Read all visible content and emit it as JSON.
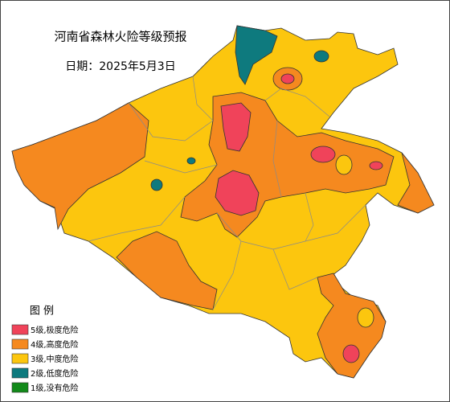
{
  "title": "河南省森林火险等级预报",
  "date": "日期：2025年5月3日",
  "legend": {
    "title": "图  例",
    "items": [
      {
        "label": "5级,极度危险",
        "color": "#f0435a"
      },
      {
        "label": "4级,高度危险",
        "color": "#f5891f"
      },
      {
        "label": "3级,中度危险",
        "color": "#fcc60e"
      },
      {
        "label": "2级,低度危险",
        "color": "#0e7a7e"
      },
      {
        "label": "1级,没有危险",
        "color": "#128a1a"
      }
    ]
  }
}
